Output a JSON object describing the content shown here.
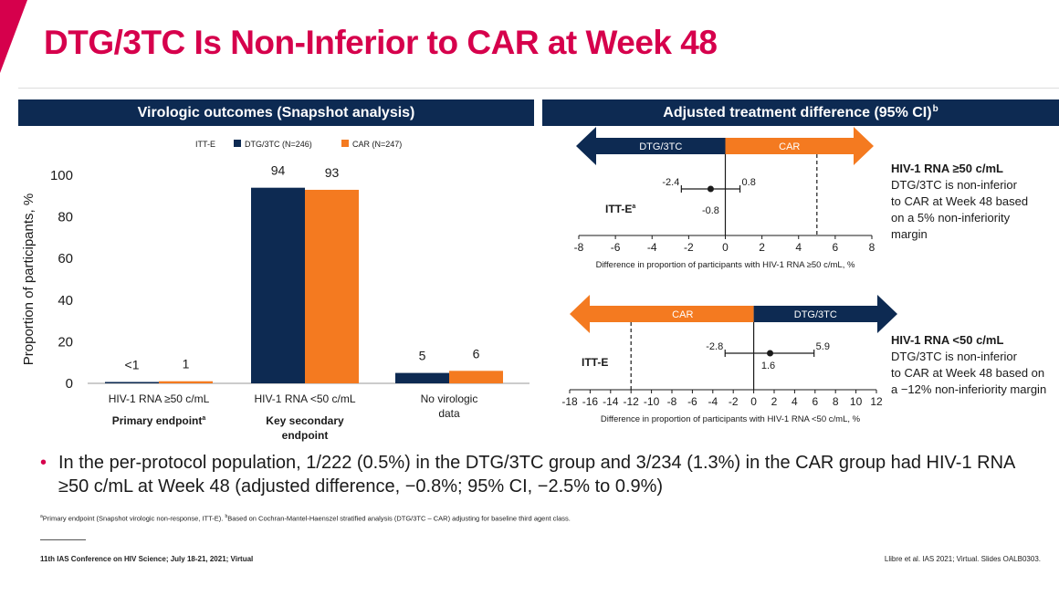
{
  "slide": {
    "title": "DTG/3TC Is Non-Inferior to CAR at Week 48",
    "colors": {
      "accent": "#d6004c",
      "navy": "#0d2a52",
      "orange": "#f47a20"
    }
  },
  "left_panel": {
    "header": "Virologic outcomes (Snapshot analysis)"
  },
  "right_panel": {
    "header": "Adjusted treatment difference (95% CI)",
    "header_sup": "b"
  },
  "chart_data": [
    {
      "type": "bar",
      "title": "Virologic outcomes (Snapshot analysis)",
      "ylabel": "Proportion of participants, %",
      "ylim": [
        0,
        100
      ],
      "yticks": [
        "0",
        "20",
        "40",
        "60",
        "80",
        "100"
      ],
      "legend": [
        {
          "name": "ITT-E",
          "color": ""
        },
        {
          "name": "DTG/3TC (N=246)",
          "color": "#0d2a52"
        },
        {
          "name": "CAR (N=247)",
          "color": "#f47a20"
        }
      ],
      "categories": [
        {
          "label": "HIV-1 RNA ≥50 c/mL",
          "sublabel": "Primary endpoint",
          "sub_sup": "a"
        },
        {
          "label": "HIV-1 RNA <50 c/mL",
          "sublabel": "Key secondary endpoint",
          "sub_sup": ""
        },
        {
          "label": "No virologic data",
          "sublabel": "",
          "sub_sup": ""
        }
      ],
      "series": [
        {
          "name": "DTG/3TC (N=246)",
          "values": [
            0.5,
            94,
            5
          ],
          "labels": [
            "<1",
            "94",
            "5"
          ]
        },
        {
          "name": "CAR (N=247)",
          "values": [
            1,
            93,
            6
          ],
          "labels": [
            "1",
            "93",
            "6"
          ]
        }
      ]
    },
    {
      "type": "scatter",
      "title": "HIV-1 RNA ≥50 c/mL",
      "arrow_left": "DTG/3TC",
      "arrow_right": "CAR",
      "row_label": "ITT-E",
      "row_sup": "a",
      "point": -0.8,
      "ci": [
        -2.4,
        0.8
      ],
      "labels": {
        "lower": "-2.4",
        "upper": "0.8",
        "point": "-0.8"
      },
      "margin": 5,
      "xlim": [
        -8,
        8
      ],
      "xticks": [
        "-8",
        "-6",
        "-4",
        "-2",
        "0",
        "2",
        "4",
        "6",
        "8"
      ],
      "xlabel": "Difference in proportion of participants with HIV-1 RNA ≥50 c/mL, %",
      "side_title": "HIV-1 RNA ≥50 c/mL",
      "side_lines": [
        "DTG/3TC is non-inferior",
        "to CAR at Week 48 based",
        "on a 5% non-inferiority",
        "margin"
      ]
    },
    {
      "type": "scatter",
      "title": "HIV-1 RNA <50 c/mL",
      "arrow_left": "CAR",
      "arrow_right": "DTG/3TC",
      "row_label": "ITT-E",
      "row_sup": "",
      "point": 1.6,
      "ci": [
        -2.8,
        5.9
      ],
      "labels": {
        "lower": "-2.8",
        "upper": "5.9",
        "point": "1.6"
      },
      "margin": -12,
      "xlim": [
        -18,
        12
      ],
      "xticks": [
        "-18",
        "-16",
        "-14",
        "-12",
        "-10",
        "-8",
        "-6",
        "-4",
        "-2",
        "0",
        "2",
        "4",
        "6",
        "8",
        "10",
        "12"
      ],
      "xlabel": "Difference in proportion of participants with HIV-1 RNA <50 c/mL, %",
      "side_title": "HIV-1 RNA <50 c/mL",
      "side_lines": [
        "DTG/3TC is non-inferior",
        "to CAR at Week 48 based on",
        "a −12% non-inferiority margin"
      ]
    }
  ],
  "bullet": "In the per-protocol population, 1/222 (0.5%) in the DTG/3TC group and 3/234 (1.3%) in the CAR group had HIV-1 RNA ≥50 c/mL at Week 48 (adjusted difference, −0.8%; 95% CI, −2.5% to 0.9%)",
  "footnote": {
    "a_sup": "a",
    "a_text": "Primary endpoint (Snapshot virologic non-response, ITT-E). ",
    "b_sup": "b",
    "b_text": "Based on Cochran-Mantel-Haenszel stratified analysis (DTG/3TC – CAR) adjusting for baseline third agent class."
  },
  "footer": {
    "conference": "11th IAS Conference on HIV Science; July 18-21, 2021; Virtual",
    "reference": "Llibre et al. IAS 2021; Virtual. Slides OALB0303."
  }
}
